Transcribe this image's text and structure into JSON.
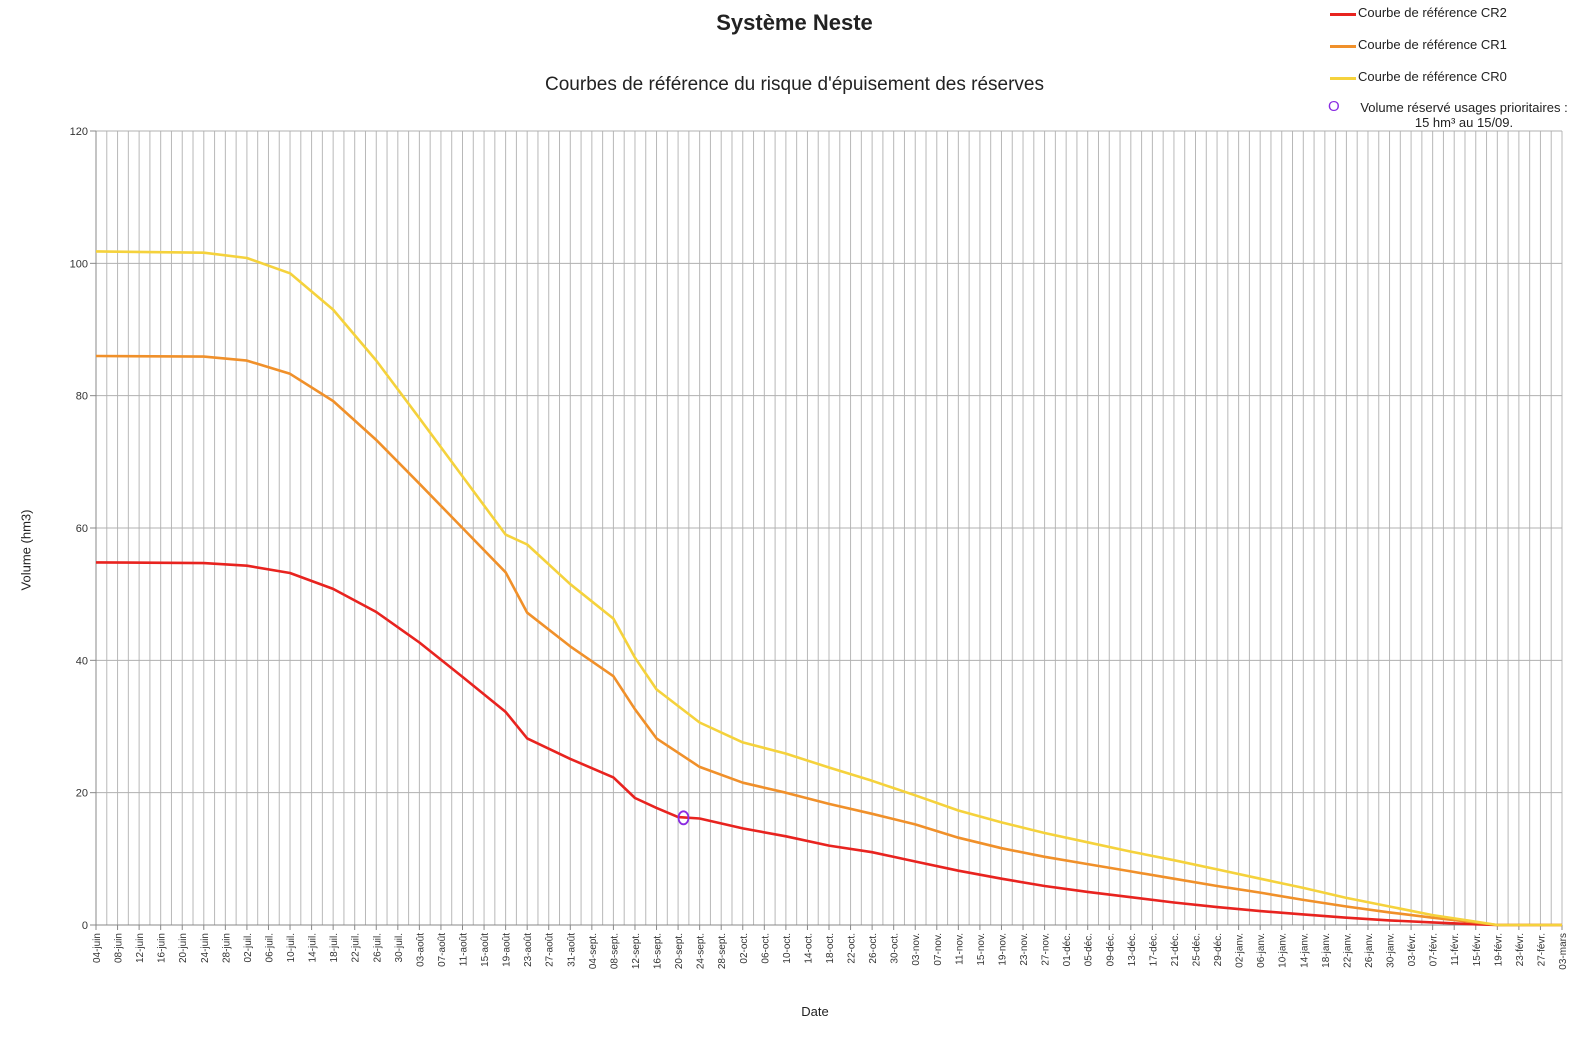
{
  "chart_data": {
    "type": "line",
    "title": "Système Neste",
    "subtitle": "Courbes de référence du risque d'épuisement des réserves",
    "xlabel": "Date",
    "ylabel": "Volume (hm3)",
    "ylim": [
      0,
      120
    ],
    "yticks": [
      0,
      20,
      40,
      60,
      80,
      100,
      120
    ],
    "grid": true,
    "legend_position": "top-right",
    "x_start": "04-juin",
    "x_end": "03-mars",
    "day_ticks": [
      "04-juin",
      "08-juin",
      "12-juin",
      "16-juin",
      "20-juin",
      "24-juin",
      "28-juin",
      "02-juil.",
      "06-juil.",
      "10-juil.",
      "14-juil.",
      "18-juil.",
      "22-juil.",
      "26-juil.",
      "30-juil.",
      "03-août",
      "07-août",
      "11-août",
      "15-août",
      "19-août",
      "23-août",
      "27-août",
      "31-août",
      "04-sept.",
      "08-sept.",
      "12-sept.",
      "16-sept.",
      "20-sept.",
      "24-sept.",
      "28-sept.",
      "02-oct.",
      "06-oct.",
      "10-oct.",
      "14-oct.",
      "18-oct.",
      "22-oct.",
      "26-oct.",
      "30-oct.",
      "03-nov.",
      "07-nov.",
      "11-nov.",
      "15-nov.",
      "19-nov.",
      "23-nov.",
      "27-nov.",
      "01-déc.",
      "05-déc.",
      "09-déc.",
      "13-déc.",
      "17-déc.",
      "21-déc.",
      "25-déc.",
      "29-déc.",
      "02-janv.",
      "06-janv.",
      "10-janv.",
      "14-janv.",
      "18-janv.",
      "22-janv.",
      "26-janv.",
      "30-janv.",
      "03-févr.",
      "07-févr.",
      "11-févr.",
      "15-févr.",
      "19-févr.",
      "23-févr.",
      "27-févr.",
      "03-mars"
    ],
    "series": [
      {
        "name": "Courbe de référence CR2",
        "color": "#e8231f",
        "points": [
          [
            "04-juin",
            54.8
          ],
          [
            "24-juin",
            54.7
          ],
          [
            "02-juil.",
            54.3
          ],
          [
            "10-juil.",
            53.2
          ],
          [
            "18-juil.",
            50.8
          ],
          [
            "26-juil.",
            47.3
          ],
          [
            "03-août",
            42.7
          ],
          [
            "11-août",
            37.5
          ],
          [
            "19-août",
            32.2
          ],
          [
            "23-août",
            28.2
          ],
          [
            "31-août",
            25.1
          ],
          [
            "08-sept.",
            22.3
          ],
          [
            "12-sept.",
            19.2
          ],
          [
            "16-sept.",
            17.7
          ],
          [
            "20-sept.",
            16.3
          ],
          [
            "24-sept.",
            16.1
          ],
          [
            "02-oct.",
            14.6
          ],
          [
            "10-oct.",
            13.4
          ],
          [
            "18-oct.",
            12.0
          ],
          [
            "26-oct.",
            11.0
          ],
          [
            "03-nov.",
            9.6
          ],
          [
            "11-nov.",
            8.2
          ],
          [
            "19-nov.",
            7.0
          ],
          [
            "27-nov.",
            5.9
          ],
          [
            "05-déc.",
            5.0
          ],
          [
            "13-déc.",
            4.2
          ],
          [
            "21-déc.",
            3.4
          ],
          [
            "29-déc.",
            2.7
          ],
          [
            "06-janv.",
            2.1
          ],
          [
            "14-janv.",
            1.6
          ],
          [
            "22-janv.",
            1.1
          ],
          [
            "30-janv.",
            0.7
          ],
          [
            "07-févr.",
            0.4
          ],
          [
            "15-févr.",
            0.1
          ],
          [
            "19-févr.",
            0
          ],
          [
            "03-mars",
            0
          ]
        ]
      },
      {
        "name": "Courbe de référence CR1",
        "color": "#f0902a",
        "points": [
          [
            "04-juin",
            86.0
          ],
          [
            "24-juin",
            85.9
          ],
          [
            "02-juil.",
            85.3
          ],
          [
            "10-juil.",
            83.3
          ],
          [
            "18-juil.",
            79.2
          ],
          [
            "26-juil.",
            73.3
          ],
          [
            "03-août",
            66.7
          ],
          [
            "11-août",
            60.0
          ],
          [
            "19-août",
            53.3
          ],
          [
            "23-août",
            47.2
          ],
          [
            "31-août",
            42.1
          ],
          [
            "08-sept.",
            37.6
          ],
          [
            "12-sept.",
            32.6
          ],
          [
            "16-sept.",
            28.2
          ],
          [
            "24-sept.",
            23.9
          ],
          [
            "02-oct.",
            21.5
          ],
          [
            "10-oct.",
            20.0
          ],
          [
            "18-oct.",
            18.3
          ],
          [
            "26-oct.",
            16.8
          ],
          [
            "03-nov.",
            15.2
          ],
          [
            "11-nov.",
            13.2
          ],
          [
            "19-nov.",
            11.6
          ],
          [
            "27-nov.",
            10.3
          ],
          [
            "05-déc.",
            9.2
          ],
          [
            "13-déc.",
            8.1
          ],
          [
            "21-déc.",
            7.0
          ],
          [
            "29-déc.",
            5.9
          ],
          [
            "06-janv.",
            4.9
          ],
          [
            "14-janv.",
            3.8
          ],
          [
            "22-janv.",
            2.8
          ],
          [
            "30-janv.",
            1.9
          ],
          [
            "07-févr.",
            1.1
          ],
          [
            "15-févr.",
            0.4
          ],
          [
            "19-févr.",
            0
          ],
          [
            "03-mars",
            0
          ]
        ]
      },
      {
        "name": "Courbe de référence CR0",
        "color": "#f5d23c",
        "points": [
          [
            "04-juin",
            101.8
          ],
          [
            "24-juin",
            101.6
          ],
          [
            "02-juil.",
            100.8
          ],
          [
            "10-juil.",
            98.5
          ],
          [
            "18-juil.",
            93.0
          ],
          [
            "26-juil.",
            85.3
          ],
          [
            "03-août",
            76.6
          ],
          [
            "11-août",
            67.8
          ],
          [
            "19-août",
            59.0
          ],
          [
            "23-août",
            57.5
          ],
          [
            "31-août",
            51.5
          ],
          [
            "08-sept.",
            46.3
          ],
          [
            "12-sept.",
            40.4
          ],
          [
            "16-sept.",
            35.6
          ],
          [
            "24-sept.",
            30.6
          ],
          [
            "02-oct.",
            27.6
          ],
          [
            "10-oct.",
            25.9
          ],
          [
            "18-oct.",
            23.8
          ],
          [
            "26-oct.",
            21.8
          ],
          [
            "03-nov.",
            19.6
          ],
          [
            "11-nov.",
            17.3
          ],
          [
            "19-nov.",
            15.5
          ],
          [
            "27-nov.",
            13.9
          ],
          [
            "05-déc.",
            12.5
          ],
          [
            "13-déc.",
            11.1
          ],
          [
            "21-déc.",
            9.8
          ],
          [
            "29-déc.",
            8.4
          ],
          [
            "06-janv.",
            7.0
          ],
          [
            "14-janv.",
            5.6
          ],
          [
            "22-janv.",
            4.1
          ],
          [
            "30-janv.",
            2.8
          ],
          [
            "07-févr.",
            1.5
          ],
          [
            "15-févr.",
            0.5
          ],
          [
            "19-févr.",
            0
          ],
          [
            "27-févr.",
            0
          ],
          [
            "03-mars",
            0
          ]
        ]
      }
    ],
    "marker": {
      "date": "21-sept.",
      "value": 16.2,
      "symbol": "O",
      "color": "#8a2be2",
      "label_line1": "Volume réservé usages prioritaires :",
      "label_line2": "15 hm³ au 15/09."
    }
  }
}
